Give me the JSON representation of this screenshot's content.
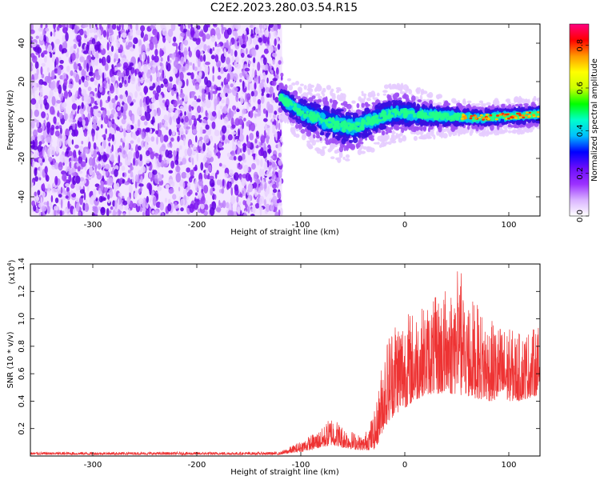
{
  "title": "C2E2.2023.280.03.54.R15",
  "chart_data": [
    {
      "type": "heatmap",
      "xlabel": "Height of straight line (km)",
      "ylabel": "Frequency (Hz)",
      "xlim": [
        -360,
        130
      ],
      "ylim": [
        -50,
        50
      ],
      "xticks": [
        -300,
        -200,
        -100,
        0,
        100
      ],
      "yticks": [
        -40,
        -20,
        0,
        20,
        40
      ],
      "xtick_labels": [
        "-300",
        "-200",
        "-100",
        "0",
        "100"
      ],
      "ytick_labels": [
        "-40",
        "-20",
        "0",
        "20",
        "40"
      ],
      "noise_region": {
        "x_range": [
          -360,
          -118
        ],
        "y_range": [
          -50,
          50
        ]
      },
      "signal_band": [
        {
          "x": -120,
          "center": 12,
          "width": 10
        },
        {
          "x": -110,
          "center": 8,
          "width": 12
        },
        {
          "x": -100,
          "center": 4,
          "width": 14
        },
        {
          "x": -80,
          "center": 0,
          "width": 16
        },
        {
          "x": -60,
          "center": -3,
          "width": 18
        },
        {
          "x": -50,
          "center": -4,
          "width": 16
        },
        {
          "x": -30,
          "center": 0,
          "width": 14
        },
        {
          "x": -10,
          "center": 4,
          "width": 14
        },
        {
          "x": 10,
          "center": 3,
          "width": 12
        },
        {
          "x": 40,
          "center": 2,
          "width": 10
        },
        {
          "x": 70,
          "center": 1,
          "width": 8
        },
        {
          "x": 100,
          "center": 2,
          "width": 8
        },
        {
          "x": 130,
          "center": 3,
          "width": 8
        }
      ],
      "colorbar": {
        "label": "Normalized spectral amplitude",
        "range": [
          0,
          0.9
        ],
        "ticks": [
          0.0,
          0.2,
          0.4,
          0.6,
          0.8
        ],
        "tick_labels": [
          "0.0",
          "0.2",
          "0.4",
          "0.6",
          "0.8"
        ],
        "colors": [
          "#ffffff",
          "#d9b3ff",
          "#9b30ff",
          "#6a0dfa",
          "#0000ff",
          "#00bfff",
          "#00ffcc",
          "#00ff00",
          "#ccff00",
          "#ffff00",
          "#ff9900",
          "#ff0000",
          "#ff0080"
        ]
      }
    },
    {
      "type": "line",
      "xlabel": "Height of straight line (km)",
      "ylabel": "SNR (10 * v/v)",
      "scale_label": "(x10",
      "scale_exponent": "4",
      "scale_close": ")",
      "xlim": [
        -360,
        130
      ],
      "ylim": [
        0,
        1.4
      ],
      "xticks": [
        -300,
        -200,
        -100,
        0,
        100
      ],
      "yticks": [
        0.2,
        0.4,
        0.6,
        0.8,
        1.0,
        1.2,
        1.4
      ],
      "xtick_labels": [
        "-300",
        "-200",
        "-100",
        "0",
        "100"
      ],
      "ytick_labels": [
        "0.2",
        "0.4",
        "0.6",
        "0.8",
        "1.0",
        "1.2",
        "1.4"
      ],
      "series": [
        {
          "color": "#ee3333",
          "envelope": [
            {
              "x": -360,
              "base": 0.01,
              "amp": 0.02
            },
            {
              "x": -120,
              "base": 0.01,
              "amp": 0.02
            },
            {
              "x": -100,
              "base": 0.03,
              "amp": 0.08
            },
            {
              "x": -80,
              "base": 0.06,
              "amp": 0.14
            },
            {
              "x": -70,
              "base": 0.08,
              "amp": 0.22
            },
            {
              "x": -60,
              "base": 0.06,
              "amp": 0.16
            },
            {
              "x": -40,
              "base": 0.04,
              "amp": 0.1
            },
            {
              "x": -28,
              "base": 0.05,
              "amp": 0.3
            },
            {
              "x": -20,
              "base": 0.2,
              "amp": 0.6
            },
            {
              "x": -10,
              "base": 0.3,
              "amp": 0.75
            },
            {
              "x": 0,
              "base": 0.35,
              "amp": 0.7
            },
            {
              "x": 20,
              "base": 0.45,
              "amp": 0.65
            },
            {
              "x": 50,
              "base": 0.45,
              "amp": 0.85
            },
            {
              "x": 80,
              "base": 0.4,
              "amp": 0.6
            },
            {
              "x": 110,
              "base": 0.4,
              "amp": 0.5
            },
            {
              "x": 130,
              "base": 0.45,
              "amp": 0.5
            }
          ]
        }
      ]
    }
  ]
}
